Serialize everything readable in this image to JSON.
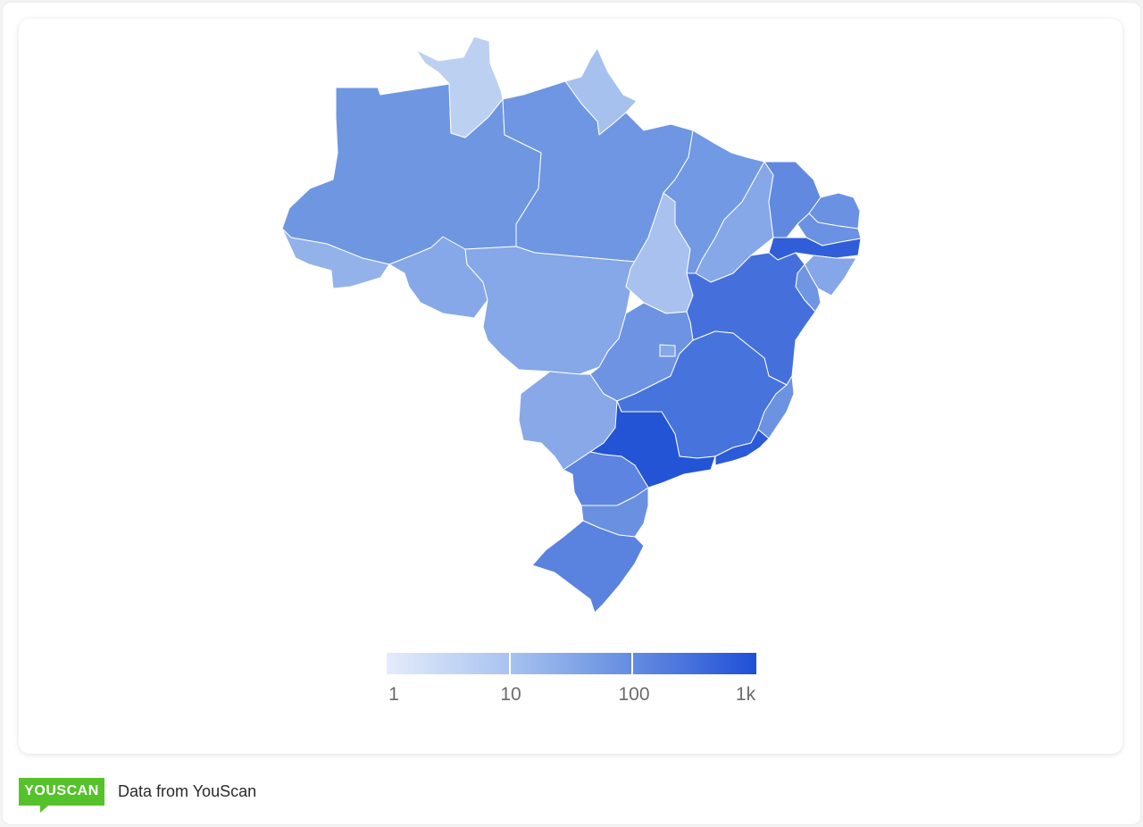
{
  "legend": {
    "labels": [
      "1",
      "10",
      "100",
      "1k"
    ],
    "scale": "log",
    "colors": [
      "#e3ecfb",
      "#a9c3f0",
      "#7a9fe6",
      "#4f78de",
      "#1f4fd6"
    ]
  },
  "regions": [
    {
      "id": "AM",
      "color": "#6f97e1"
    },
    {
      "id": "RR",
      "color": "#bcd0f2"
    },
    {
      "id": "AP",
      "color": "#a7c1ee"
    },
    {
      "id": "PA",
      "color": "#6f96e2"
    },
    {
      "id": "AC",
      "color": "#93b2ea"
    },
    {
      "id": "RO",
      "color": "#87a8e8"
    },
    {
      "id": "MT",
      "color": "#86a7e8"
    },
    {
      "id": "TO",
      "color": "#a8c1ef"
    },
    {
      "id": "MA",
      "color": "#7299e4"
    },
    {
      "id": "PI",
      "color": "#86a7e8"
    },
    {
      "id": "CE",
      "color": "#6189e0"
    },
    {
      "id": "RN",
      "color": "#6b91e2"
    },
    {
      "id": "PB",
      "color": "#6b91e2"
    },
    {
      "id": "PE",
      "color": "#2f5ed8"
    },
    {
      "id": "AL",
      "color": "#85a6e8"
    },
    {
      "id": "SE",
      "color": "#7096e2"
    },
    {
      "id": "BA",
      "color": "#4570dc"
    },
    {
      "id": "GO",
      "color": "#6d93e2"
    },
    {
      "id": "DF",
      "color": "#86a7e8"
    },
    {
      "id": "MS",
      "color": "#88a8e8"
    },
    {
      "id": "MG",
      "color": "#4773dc"
    },
    {
      "id": "ES",
      "color": "#6c92e2"
    },
    {
      "id": "SP",
      "color": "#2354d6"
    },
    {
      "id": "RJ",
      "color": "#2b5bd8"
    },
    {
      "id": "PR",
      "color": "#5c84e0"
    },
    {
      "id": "SC",
      "color": "#6a90e2"
    },
    {
      "id": "RS",
      "color": "#5a82df"
    }
  ],
  "footer": {
    "logo_text": "YOUSCAN",
    "source_text": "Data from YouScan"
  }
}
